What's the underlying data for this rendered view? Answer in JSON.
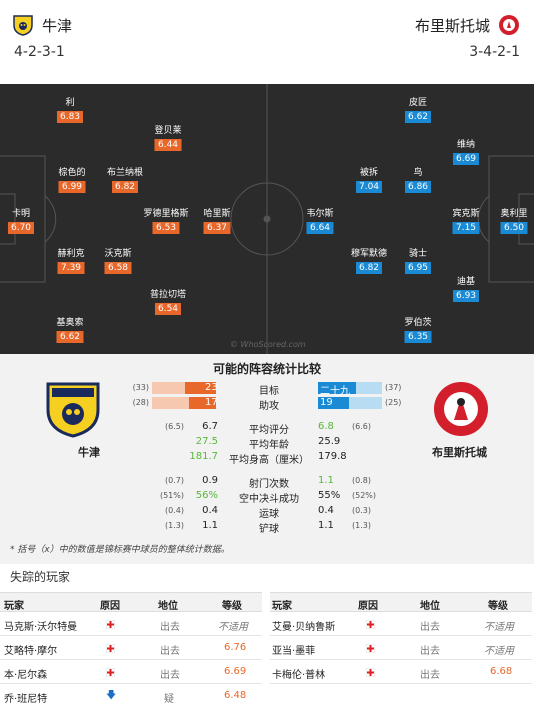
{
  "header": {
    "home": {
      "name": "牛津",
      "formation": "4-2-3-1"
    },
    "away": {
      "name": "布里斯托城",
      "formation": "3-4-2-1"
    }
  },
  "pitch": {
    "home_players": [
      {
        "name": "利",
        "rating": "6.83"
      },
      {
        "name": "登贝莱",
        "rating": "6.44"
      },
      {
        "name": "棕色的",
        "rating": "6.99"
      },
      {
        "name": "布兰纳根",
        "rating": "6.82"
      },
      {
        "name": "卡明",
        "rating": "6.70"
      },
      {
        "name": "罗德里格斯",
        "rating": "6.53"
      },
      {
        "name": "哈里斯",
        "rating": "6.37"
      },
      {
        "name": "赫利克",
        "rating": "7.39"
      },
      {
        "name": "沃克斯",
        "rating": "6.58"
      },
      {
        "name": "普拉切塔",
        "rating": "6.54"
      },
      {
        "name": "基奥索",
        "rating": "6.62"
      }
    ],
    "away_players": [
      {
        "name": "皮匠",
        "rating": "6.62"
      },
      {
        "name": "维纳",
        "rating": "6.69"
      },
      {
        "name": "被拆",
        "rating": "7.04"
      },
      {
        "name": "鸟",
        "rating": "6.86"
      },
      {
        "name": "韦尔斯",
        "rating": "6.64"
      },
      {
        "name": "宾克斯",
        "rating": "7.15"
      },
      {
        "name": "奥利里",
        "rating": "6.50"
      },
      {
        "name": "穆军默德",
        "rating": "6.82"
      },
      {
        "name": "骑士",
        "rating": "6.95"
      },
      {
        "name": "迪基",
        "rating": "6.93"
      },
      {
        "name": "罗伯茨",
        "rating": "6.35"
      }
    ],
    "watermark": "© WhoScored.com"
  },
  "compare": {
    "title": "可能的阵容统计比较",
    "home_name": "牛津",
    "away_name": "布里斯托城",
    "bar_rows": [
      {
        "label": "目标",
        "home": "23",
        "home_x": "(33)",
        "away": "二十九",
        "away_x": "(37)",
        "home_frac": 0.48,
        "away_frac": 0.6
      },
      {
        "label": "助攻",
        "home": "17",
        "home_x": "(28)",
        "away": "19",
        "away_x": "(25)",
        "home_frac": 0.42,
        "away_frac": 0.48
      }
    ],
    "rows": [
      {
        "label": "平均评分",
        "home": "6.7",
        "home_x": "(6.5)",
        "away": "6.8",
        "away_x": "(6.6)",
        "win": "away"
      },
      {
        "label": "平均年龄",
        "home": "27.5",
        "home_x": "",
        "away": "25.9",
        "away_x": "",
        "win": "home"
      },
      {
        "label": "平均身高（厘米）",
        "home": "181.7",
        "home_x": "",
        "away": "179.8",
        "away_x": "",
        "win": "home"
      },
      {
        "label": "射门次数",
        "home": "0.9",
        "home_x": "(0.7)",
        "away": "1.1",
        "away_x": "(0.8)",
        "win": "away"
      },
      {
        "label": "空中决斗成功",
        "home": "56%",
        "home_x": "(51%)",
        "away": "55%",
        "away_x": "(52%)",
        "win": "home"
      },
      {
        "label": "运球",
        "home": "0.4",
        "home_x": "(0.4)",
        "away": "0.4",
        "away_x": "(0.3)",
        "win": ""
      },
      {
        "label": "铲球",
        "home": "1.1",
        "home_x": "(1.3)",
        "away": "1.1",
        "away_x": "(1.3)",
        "win": ""
      }
    ],
    "footnote": "* 括号（x）中的数值是锦标赛中球员的整体统计数据。"
  },
  "missing": {
    "title": "失踪的玩家",
    "headers": {
      "player": "玩家",
      "reason": "原因",
      "position": "地位",
      "rating": "等级"
    },
    "home": [
      {
        "name": "马克斯·沃尔特曼",
        "reason": "cross",
        "status": "出去",
        "rating": "不适用",
        "na": true
      },
      {
        "name": "艾略特·摩尔",
        "reason": "cross",
        "status": "出去",
        "rating": "6.76",
        "na": false
      },
      {
        "name": "本·尼尔森",
        "reason": "cross",
        "status": "出去",
        "rating": "6.69",
        "na": false
      },
      {
        "name": "乔·班尼特",
        "reason": "arrow",
        "status": "疑",
        "rating": "6.48",
        "na": false
      }
    ],
    "away": [
      {
        "name": "艾曼·贝纳鲁斯",
        "reason": "cross",
        "status": "出去",
        "rating": "不适用",
        "na": true
      },
      {
        "name": "亚当·墨菲",
        "reason": "cross",
        "status": "出去",
        "rating": "不适用",
        "na": true
      },
      {
        "name": "卡梅伦·普林",
        "reason": "cross",
        "status": "出去",
        "rating": "6.68",
        "na": false
      }
    ]
  },
  "colors": {
    "home": "#e8682b",
    "away": "#1a8ad4",
    "pitch": "#2b2b2b",
    "win": "#5ab53a"
  }
}
